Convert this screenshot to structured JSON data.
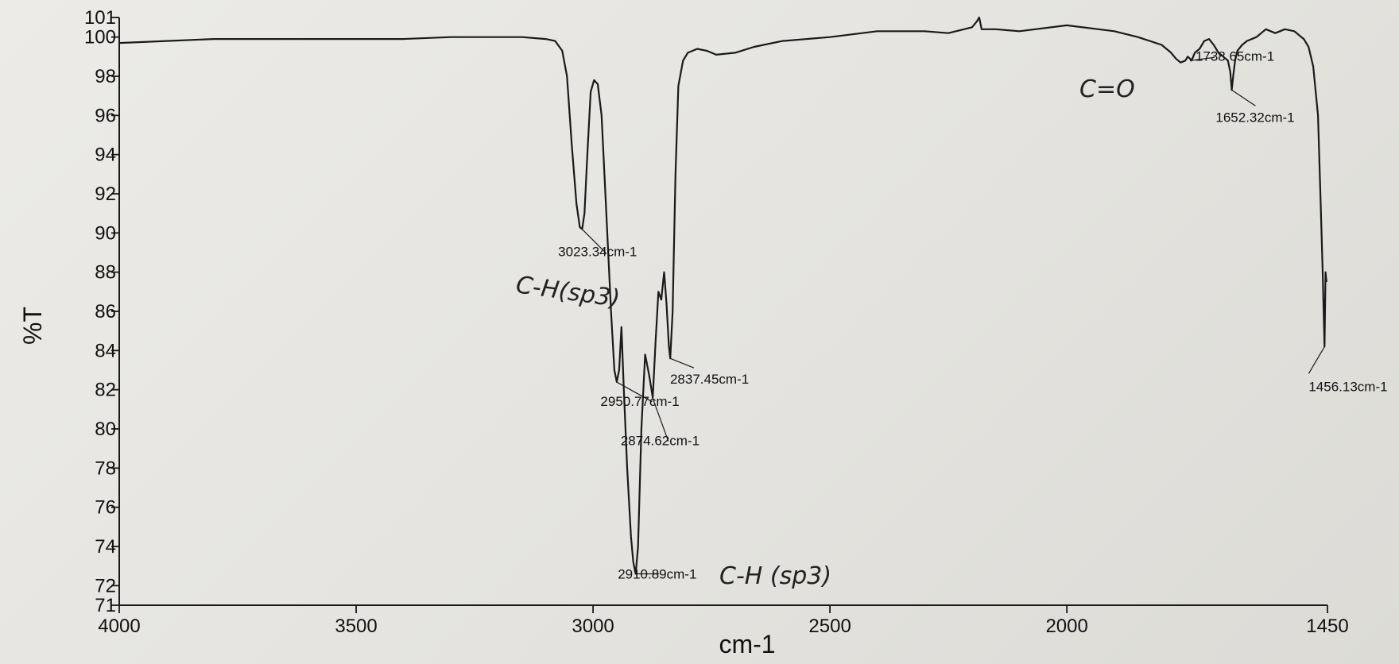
{
  "chart_data": {
    "type": "line",
    "xlabel": "cm-1",
    "ylabel": "%T",
    "xlim": [
      4000,
      1450
    ],
    "ylim": [
      71,
      101
    ],
    "x_ticks": [
      4000,
      3500,
      3000,
      2500,
      2000,
      1450
    ],
    "y_ticks": [
      71,
      72,
      74,
      76,
      78,
      80,
      82,
      84,
      86,
      88,
      90,
      92,
      94,
      96,
      98,
      100,
      101
    ],
    "grid": false,
    "legend": "none",
    "line_color": "#1a1a1a",
    "series": [
      {
        "x": [
          4000,
          3900,
          3800,
          3700,
          3600,
          3500,
          3400,
          3300,
          3200,
          3150,
          3100,
          3080,
          3065,
          3055,
          3045,
          3035,
          3028,
          3023,
          3018,
          3012,
          3005,
          2998,
          2990,
          2982,
          2972,
          2962,
          2955,
          2950,
          2945,
          2940,
          2935,
          2928,
          2920,
          2915,
          2910,
          2905,
          2898,
          2890,
          2882,
          2874,
          2868,
          2862,
          2856,
          2850,
          2845,
          2840,
          2837,
          2832,
          2826,
          2820,
          2810,
          2800,
          2780,
          2760,
          2740,
          2700,
          2660,
          2600,
          2500,
          2400,
          2300,
          2250,
          2200,
          2190,
          2185,
          2180,
          2150,
          2100,
          2000,
          1900,
          1850,
          1800,
          1780,
          1770,
          1760,
          1750,
          1745,
          1740,
          1738,
          1735,
          1730,
          1720,
          1710,
          1700,
          1690,
          1680,
          1670,
          1660,
          1655,
          1652,
          1649,
          1645,
          1640,
          1630,
          1620,
          1600,
          1580,
          1560,
          1540,
          1520,
          1510,
          1500,
          1490,
          1480,
          1470,
          1465,
          1460,
          1458,
          1456.13,
          1454,
          1452
        ],
        "y": [
          99.7,
          99.8,
          99.9,
          99.9,
          99.9,
          99.9,
          99.9,
          100.0,
          100.0,
          100.0,
          99.9,
          99.8,
          99.3,
          98.0,
          94.5,
          91.5,
          90.3,
          90.2,
          91.0,
          94.0,
          97.2,
          97.8,
          97.6,
          96.0,
          91.0,
          86.0,
          83.0,
          82.4,
          83.0,
          85.2,
          82.0,
          78.0,
          74.5,
          73.2,
          72.6,
          74.0,
          80.0,
          83.8,
          82.8,
          81.6,
          84.5,
          87.0,
          86.6,
          88.0,
          86.4,
          84.2,
          83.6,
          86.0,
          93.0,
          97.5,
          98.8,
          99.2,
          99.4,
          99.3,
          99.1,
          99.2,
          99.5,
          99.8,
          100.0,
          100.3,
          100.3,
          100.2,
          100.5,
          100.8,
          101.0,
          100.4,
          100.4,
          100.3,
          100.6,
          100.3,
          100.0,
          99.6,
          99.2,
          98.9,
          98.7,
          98.8,
          99.0,
          98.9,
          98.8,
          98.9,
          99.2,
          99.4,
          99.8,
          99.9,
          99.6,
          99.2,
          99.0,
          98.8,
          98.2,
          97.3,
          98.0,
          98.8,
          99.3,
          99.6,
          99.8,
          100.0,
          100.4,
          100.2,
          100.4,
          100.3,
          100.1,
          99.9,
          99.5,
          98.5,
          96.0,
          92.0,
          88.0,
          86.0,
          84.2,
          88.0,
          87.5
        ]
      }
    ],
    "annotations": [
      {
        "label": "3023.34cm-1",
        "x": 3023.34,
        "y": 90.2
      },
      {
        "label": "2950.77cm-1",
        "x": 2950.77,
        "y": 82.4
      },
      {
        "label": "2910.89cm-1",
        "x": 2910.89,
        "y": 72.6
      },
      {
        "label": "2874.62cm-1",
        "x": 2874.62,
        "y": 81.6
      },
      {
        "label": "2837.45cm-1",
        "x": 2837.45,
        "y": 83.6
      },
      {
        "label": "1738.65cm-1",
        "x": 1738.65,
        "y": 98.8
      },
      {
        "label": "1652.32cm-1",
        "x": 1652.32,
        "y": 97.3
      },
      {
        "label": "1456.13cm-1",
        "x": 1456.13,
        "y": 84.2
      }
    ],
    "handwritten_notes": [
      "C-H(sp3)",
      "C-H (sp3)",
      "C=O"
    ]
  }
}
